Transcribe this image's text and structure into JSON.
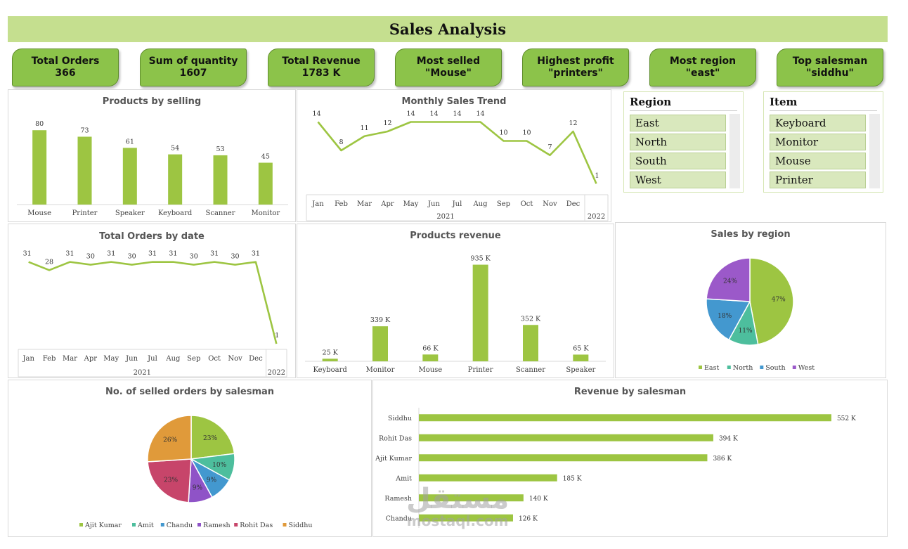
{
  "title": "Sales Analysis",
  "kpis": [
    {
      "label": "Total Orders",
      "value": "366"
    },
    {
      "label": "Sum of quantity",
      "value": "1607"
    },
    {
      "label": "Total Revenue",
      "value": "1783 K"
    },
    {
      "label": "Most selled",
      "value": "\"Mouse\""
    },
    {
      "label": "Highest profit",
      "value": "\"printers\""
    },
    {
      "label": "Most region",
      "value": "\"east\""
    },
    {
      "label": "Top salesman",
      "value": "\"siddhu\""
    }
  ],
  "slicers": {
    "region": {
      "title": "Region",
      "items": [
        "East",
        "North",
        "South",
        "West"
      ]
    },
    "item": {
      "title": "Item",
      "items": [
        "Keyboard",
        "Monitor",
        "Mouse",
        "Printer"
      ]
    }
  },
  "colors": {
    "accent": "#9dc542",
    "title_bg": "#c5df8f",
    "kpi_bg": "#8cc34a",
    "east": "#9dc542",
    "north": "#4dbe9d",
    "south": "#4398cf",
    "west": "#9b59c9",
    "ramesh": "#8f53c7",
    "rohit": "#c7456a",
    "siddhu": "#e09a3a"
  },
  "watermark": {
    "arabic": "مستقل",
    "latin": "mostaql.com"
  },
  "chart_data": [
    {
      "id": "products_selling",
      "type": "bar",
      "title": "Products by selling",
      "categories": [
        "Mouse",
        "Printer",
        "Speaker",
        "Keyboard",
        "Scanner",
        "Monitor"
      ],
      "values": [
        80,
        73,
        61,
        54,
        53,
        45
      ],
      "ylim": [
        0,
        90
      ]
    },
    {
      "id": "monthly_trend",
      "type": "line",
      "title": "Monthly Sales Trend",
      "categories": [
        "Jan",
        "Feb",
        "Mar",
        "Apr",
        "May",
        "Jun",
        "Jul",
        "Aug",
        "Sep",
        "Oct",
        "Nov",
        "Dec",
        ""
      ],
      "groups": [
        {
          "label": "2021",
          "span": 12
        },
        {
          "label": "2022",
          "span": 1
        }
      ],
      "values": [
        14,
        8,
        11,
        12,
        14,
        14,
        14,
        14,
        10,
        10,
        7,
        12,
        1
      ],
      "ylim": [
        0,
        16
      ]
    },
    {
      "id": "orders_by_date",
      "type": "line",
      "title": "Total Orders by date",
      "categories": [
        "Jan",
        "Feb",
        "Mar",
        "Apr",
        "May",
        "Jun",
        "Jul",
        "Aug",
        "Sep",
        "Oct",
        "Nov",
        "Dec",
        ""
      ],
      "groups": [
        {
          "label": "2021",
          "span": 12
        },
        {
          "label": "2022",
          "span": 1
        }
      ],
      "values": [
        31,
        28,
        31,
        30,
        31,
        30,
        31,
        31,
        30,
        31,
        30,
        31,
        1
      ],
      "ylim": [
        0,
        34
      ]
    },
    {
      "id": "products_revenue",
      "type": "bar",
      "title": "Products revenue",
      "categories": [
        "Keyboard",
        "Monitor",
        "Mouse",
        "Printer",
        "Scanner",
        "Speaker"
      ],
      "values": [
        25,
        339,
        66,
        935,
        352,
        65
      ],
      "labels": [
        "25 K",
        "339 K",
        "66 K",
        "935 K",
        "352 K",
        "65 K"
      ],
      "ylim": [
        0,
        1000
      ]
    },
    {
      "id": "sales_by_region",
      "type": "pie",
      "title": "Sales by region",
      "categories": [
        "East",
        "North",
        "South",
        "West"
      ],
      "values": [
        47,
        11,
        18,
        24
      ],
      "labels": [
        "47%",
        "11%",
        "18%",
        "24%"
      ],
      "legend": "bottom"
    },
    {
      "id": "orders_by_salesman",
      "type": "pie",
      "title": "No. of selled orders by salesman",
      "categories": [
        "Ajit Kumar",
        "Amit",
        "Chandu",
        "Ramesh",
        "Rohit Das",
        "Siddhu"
      ],
      "values": [
        23,
        10,
        9,
        9,
        23,
        26
      ],
      "labels": [
        "23%",
        "10%",
        "9%",
        "9%",
        "23%",
        "26%"
      ],
      "legend": "bottom"
    },
    {
      "id": "revenue_by_salesman",
      "type": "bar",
      "orientation": "horizontal",
      "title": "Revenue by salesman",
      "categories": [
        "Siddhu",
        "Rohit Das",
        "Ajit Kumar",
        "Amit",
        "Ramesh",
        "Chandu"
      ],
      "values": [
        552,
        394,
        386,
        185,
        140,
        126
      ],
      "labels": [
        "552 K",
        "394 K",
        "386 K",
        "185 K",
        "140 K",
        "126 K"
      ],
      "xlim": [
        0,
        600
      ]
    }
  ]
}
